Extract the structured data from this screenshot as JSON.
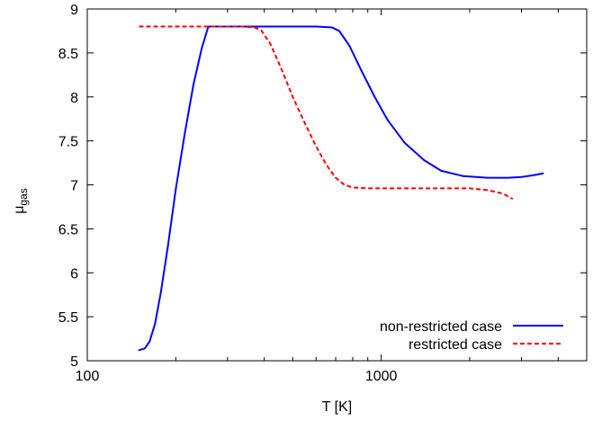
{
  "chart_data": {
    "type": "line",
    "xlabel": "T [K]",
    "ylabel_main": "μ",
    "ylabel_sub": "gas",
    "xscale": "log",
    "xlim": [
      100,
      5000
    ],
    "ylim": [
      5,
      9
    ],
    "xticks": [
      {
        "value": 100,
        "label": "100"
      },
      {
        "value": 1000,
        "label": "1000"
      }
    ],
    "yticks": [
      {
        "value": 5,
        "label": "5"
      },
      {
        "value": 5.5,
        "label": "5.5"
      },
      {
        "value": 6,
        "label": "6"
      },
      {
        "value": 6.5,
        "label": "6.5"
      },
      {
        "value": 7,
        "label": "7"
      },
      {
        "value": 7.5,
        "label": "7.5"
      },
      {
        "value": 8,
        "label": "8"
      },
      {
        "value": 8.5,
        "label": "8.5"
      },
      {
        "value": 9,
        "label": "9"
      }
    ],
    "grid": false,
    "legend_position": "bottom-right",
    "series": [
      {
        "name": "non-restricted case",
        "color": "#0000ff",
        "dash": "solid",
        "points": [
          [
            150,
            5.12
          ],
          [
            157,
            5.14
          ],
          [
            163,
            5.22
          ],
          [
            170,
            5.42
          ],
          [
            178,
            5.78
          ],
          [
            188,
            6.3
          ],
          [
            200,
            6.95
          ],
          [
            215,
            7.6
          ],
          [
            230,
            8.15
          ],
          [
            245,
            8.55
          ],
          [
            258,
            8.8
          ],
          [
            300,
            8.8
          ],
          [
            400,
            8.8
          ],
          [
            500,
            8.8
          ],
          [
            600,
            8.8
          ],
          [
            680,
            8.79
          ],
          [
            720,
            8.75
          ],
          [
            780,
            8.58
          ],
          [
            850,
            8.32
          ],
          [
            950,
            8.0
          ],
          [
            1050,
            7.74
          ],
          [
            1200,
            7.48
          ],
          [
            1400,
            7.28
          ],
          [
            1600,
            7.16
          ],
          [
            1900,
            7.1
          ],
          [
            2300,
            7.08
          ],
          [
            2700,
            7.08
          ],
          [
            3000,
            7.09
          ],
          [
            3300,
            7.11
          ],
          [
            3550,
            7.13
          ]
        ]
      },
      {
        "name": "restricted case",
        "color": "#ff0000",
        "dash": "dashed",
        "points": [
          [
            150,
            8.8
          ],
          [
            200,
            8.8
          ],
          [
            260,
            8.8
          ],
          [
            300,
            8.8
          ],
          [
            340,
            8.8
          ],
          [
            370,
            8.79
          ],
          [
            390,
            8.76
          ],
          [
            420,
            8.6
          ],
          [
            460,
            8.3
          ],
          [
            500,
            8.0
          ],
          [
            550,
            7.7
          ],
          [
            600,
            7.44
          ],
          [
            650,
            7.23
          ],
          [
            700,
            7.08
          ],
          [
            750,
            7.0
          ],
          [
            800,
            6.97
          ],
          [
            900,
            6.96
          ],
          [
            1000,
            6.96
          ],
          [
            1500,
            6.96
          ],
          [
            2000,
            6.96
          ],
          [
            2300,
            6.94
          ],
          [
            2600,
            6.9
          ],
          [
            2800,
            6.84
          ]
        ]
      }
    ]
  }
}
